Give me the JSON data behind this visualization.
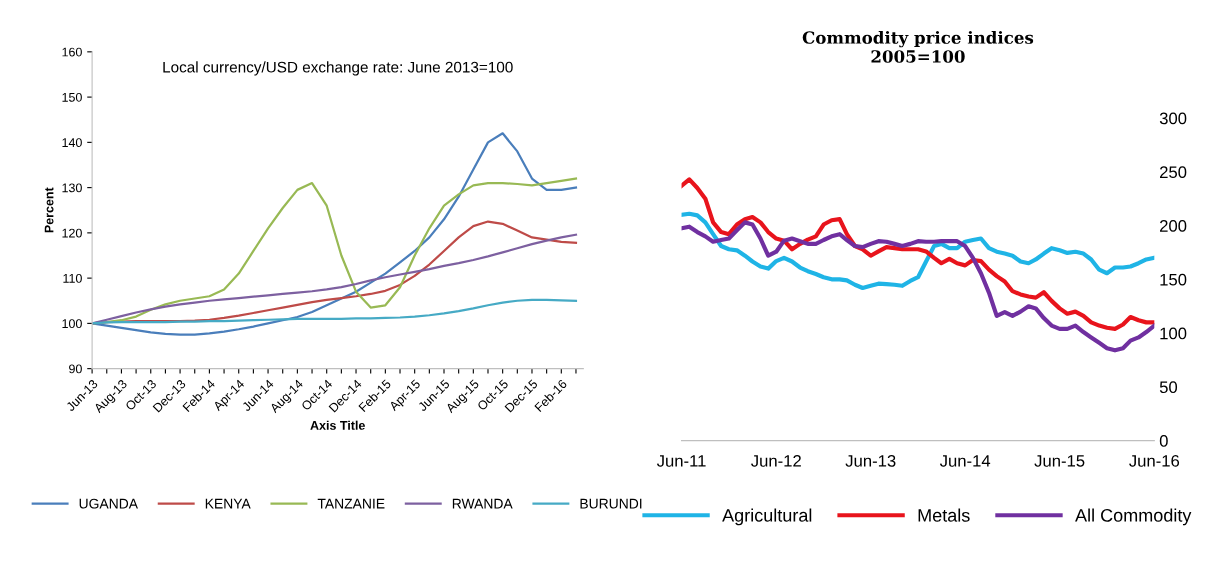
{
  "chart_data": [
    {
      "type": "line",
      "title": "Local currency/USD exchange rate: June 2013=100",
      "xlabel": "Axis Title",
      "ylabel": "Percent",
      "categories": [
        "Jun-13",
        null,
        "Aug-13",
        null,
        "Oct-13",
        null,
        "Dec-13",
        null,
        "Feb-14",
        null,
        "Apr-14",
        null,
        "Jun-14",
        null,
        "Aug-14",
        null,
        "Oct-14",
        null,
        "Dec-14",
        null,
        "Feb-15",
        null,
        "Apr-15",
        null,
        "Jun-15",
        null,
        "Aug-15",
        null,
        "Oct-15",
        null,
        "Dec-15",
        null,
        "Feb-16",
        null
      ],
      "series": [
        {
          "name": "UGANDA",
          "color": "#4a7ebb",
          "values": [
            100,
            99.5,
            99,
            98.5,
            98,
            97.7,
            97.5,
            97.5,
            97.8,
            98.2,
            98.7,
            99.3,
            100,
            100.7,
            101.4,
            102.5,
            104,
            105.5,
            107,
            109,
            111,
            113.5,
            116,
            119,
            123,
            128,
            134,
            140,
            142,
            138,
            132,
            129.5,
            129.5,
            130
          ]
        },
        {
          "name": "KENYA",
          "color": "#be4b48",
          "values": [
            100,
            100.3,
            100.4,
            100.5,
            100.5,
            100.5,
            100.5,
            100.6,
            100.8,
            101.2,
            101.7,
            102.3,
            102.9,
            103.5,
            104.1,
            104.7,
            105.2,
            105.6,
            106,
            106.5,
            107.2,
            108.5,
            110.5,
            113,
            116,
            119,
            121.5,
            122.5,
            122,
            120.5,
            119,
            118.5,
            118,
            117.8
          ]
        },
        {
          "name": "TANZANIE",
          "color": "#98b954",
          "values": [
            100,
            100.3,
            100.7,
            101.5,
            103,
            104.2,
            105,
            105.5,
            106,
            107.5,
            111,
            116,
            121,
            125.5,
            129.5,
            131,
            126,
            115,
            107,
            103.5,
            104,
            108,
            115,
            121,
            126,
            128.5,
            130.5,
            131,
            131,
            130.8,
            130.5,
            131,
            131.5,
            132
          ]
        },
        {
          "name": "RWANDA",
          "color": "#7d60a0",
          "values": [
            100,
            100.8,
            101.6,
            102.4,
            103.1,
            103.7,
            104.2,
            104.6,
            105,
            105.3,
            105.6,
            105.9,
            106.2,
            106.5,
            106.8,
            107.1,
            107.5,
            108,
            108.7,
            109.5,
            110.2,
            110.8,
            111.4,
            112,
            112.7,
            113.3,
            114,
            114.8,
            115.7,
            116.6,
            117.5,
            118.3,
            119,
            119.6
          ]
        },
        {
          "name": "BURUNDI",
          "color": "#46aac5",
          "values": [
            100,
            100.2,
            100.3,
            100.3,
            100.3,
            100.3,
            100.4,
            100.4,
            100.5,
            100.5,
            100.6,
            100.7,
            100.8,
            100.9,
            101,
            101,
            101,
            101,
            101.1,
            101.1,
            101.2,
            101.3,
            101.5,
            101.8,
            102.2,
            102.7,
            103.3,
            104,
            104.6,
            105,
            105.2,
            105.2,
            105.1,
            105
          ]
        }
      ],
      "ylim": [
        90,
        160
      ],
      "yticks": [
        90,
        100,
        110,
        120,
        130,
        140,
        150,
        160
      ],
      "grid": false,
      "legend": "bottom",
      "line_style": "solid",
      "marker": "none"
    },
    {
      "type": "line",
      "title": "Commodity price indices\n2005=100",
      "x": [
        "2011-06",
        "2011-07",
        "2011-08",
        "2011-09",
        "2011-10",
        "2011-11",
        "2011-12",
        "2012-01",
        "2012-02",
        "2012-03",
        "2012-04",
        "2012-05",
        "2012-06",
        "2012-07",
        "2012-08",
        "2012-09",
        "2012-10",
        "2012-11",
        "2012-12",
        "2013-01",
        "2013-02",
        "2013-03",
        "2013-04",
        "2013-05",
        "2013-06",
        "2013-07",
        "2013-08",
        "2013-09",
        "2013-10",
        "2013-11",
        "2013-12",
        "2014-01",
        "2014-02",
        "2014-03",
        "2014-04",
        "2014-05",
        "2014-06",
        "2014-07",
        "2014-08",
        "2014-09",
        "2014-10",
        "2014-11",
        "2014-12",
        "2015-01",
        "2015-02",
        "2015-03",
        "2015-04",
        "2015-05",
        "2015-06",
        "2015-07",
        "2015-08",
        "2015-09",
        "2015-10",
        "2015-11",
        "2015-12",
        "2016-01",
        "2016-02",
        "2016-03",
        "2016-04",
        "2016-05",
        "2016-06"
      ],
      "series": [
        {
          "name": "Agricultural",
          "color": "#1fb4e6",
          "values": [
            210,
            211,
            209.5,
            203,
            192,
            181,
            178,
            177,
            172,
            166.6,
            162,
            160,
            167,
            170,
            166.6,
            161,
            157.6,
            155,
            152,
            150,
            150,
            149,
            145,
            142,
            144,
            146,
            145.6,
            145,
            144,
            148.5,
            152,
            166.6,
            181,
            183,
            179,
            179,
            185,
            186.6,
            188,
            179,
            175.7,
            174,
            172,
            166.6,
            165,
            168.5,
            174,
            179,
            177,
            174.6,
            175.7,
            174,
            168.5,
            159,
            155.7,
            161,
            161,
            162,
            165,
            168.5,
            170
          ]
        },
        {
          "name": "Metals",
          "color": "#e8141c",
          "values": [
            237,
            243,
            235,
            225,
            203,
            194,
            192,
            201,
            206,
            208,
            203,
            194,
            188,
            186,
            178,
            183,
            187,
            190,
            201,
            205,
            206,
            192,
            181,
            178,
            172,
            176,
            180,
            179,
            178,
            178,
            178,
            176,
            170,
            165,
            169,
            165,
            163,
            168,
            167,
            159,
            153,
            148,
            139,
            136,
            134,
            133,
            138,
            130,
            123,
            118,
            120,
            116,
            110,
            107,
            105,
            104,
            108,
            115,
            112,
            110,
            110
          ]
        },
        {
          "name": "All Commodity",
          "color": "#7030a0",
          "values": [
            197.5,
            199,
            194,
            190,
            185,
            186.6,
            188,
            195.6,
            203,
            201,
            188,
            172,
            175.7,
            186,
            188,
            185.5,
            183,
            183,
            186.6,
            190,
            192,
            186.6,
            181,
            180,
            183,
            185.5,
            185,
            183,
            181,
            183,
            185.5,
            185,
            185,
            185.5,
            185.5,
            185.5,
            181,
            170,
            155.7,
            137.6,
            116,
            119.6,
            116,
            120,
            125,
            123,
            114,
            107,
            104,
            104,
            107,
            101,
            96,
            91,
            86,
            84,
            86,
            93,
            96,
            101,
            107
          ]
        }
      ],
      "xlim": [
        "2011-06",
        "2016-06"
      ],
      "xticks": [
        {
          "value": "2011-06",
          "label": "Jun-11"
        },
        {
          "value": "2012-06",
          "label": "Jun-12"
        },
        {
          "value": "2013-06",
          "label": "Jun-13"
        },
        {
          "value": "2014-06",
          "label": "Jun-14"
        },
        {
          "value": "2015-06",
          "label": "Jun-15"
        },
        {
          "value": "2016-06",
          "label": "Jun-16"
        }
      ],
      "ylim": [
        0,
        300
      ],
      "yticks": [
        0,
        50,
        100,
        150,
        200,
        250,
        300
      ],
      "grid": false,
      "legend": "bottom",
      "line_style": "solid",
      "marker": "none"
    }
  ]
}
